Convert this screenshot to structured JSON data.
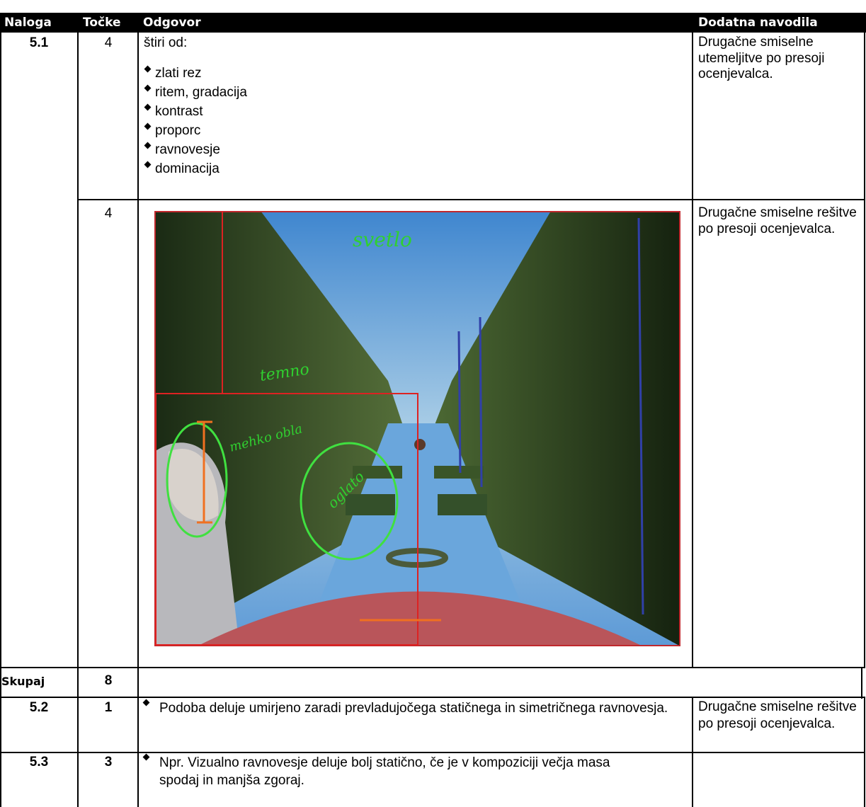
{
  "table": {
    "header": [
      "Naloga",
      "Točke",
      "Odgovor",
      "Dodatna navodila"
    ],
    "rows": [
      {
        "task": "5.1",
        "points": "4",
        "answer_intro": "štiri od:",
        "answer_items": [
          "zlati rez",
          "ritem, gradacija",
          "kontrast",
          "proporc",
          "ravnovesje",
          "dominacija"
        ],
        "note": "Drugačne smiselne utemeljitve po presoji ocenjevalca."
      },
      {
        "points": "4",
        "annotations": [
          "svetlo",
          "temno",
          "mehko obla",
          "oglato"
        ],
        "note": "Drugačne smiselne rešitve po presoji ocenjevalca."
      },
      {
        "task": "Skupaj",
        "points": "8"
      },
      {
        "task": "5.2",
        "points": "1",
        "answer": "Podoba deluje umirjeno zaradi prevladujočega statičnega in simetričnega ravnovesja.",
        "note": "Drugačne smiselne rešitve po presoji ocenjevalca."
      },
      {
        "task": "5.3",
        "points": "3",
        "answer": "Npr. Vizualno ravnovesje deluje bolj statično, če je v kompoziciji večja masa spodaj in manjša zgoraj."
      }
    ]
  }
}
